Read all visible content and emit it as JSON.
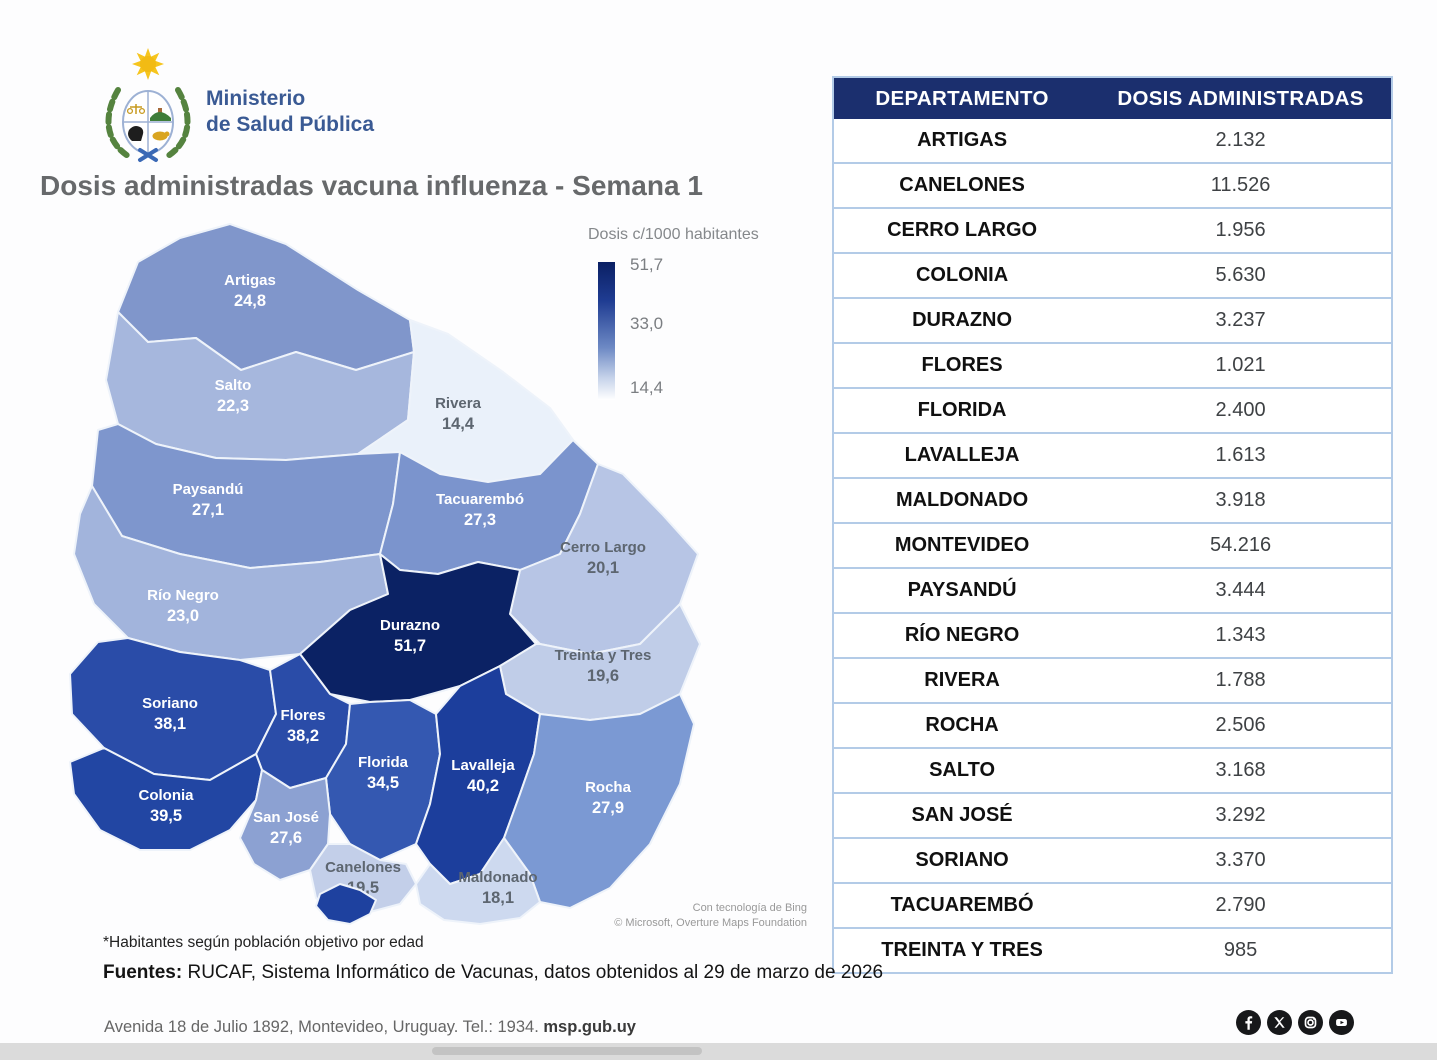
{
  "brand": {
    "line1": "Ministerio",
    "line2": "de Salud Pública"
  },
  "title": "Dosis administradas vacuna influenza - Semana 1",
  "legend": {
    "title": "Dosis c/1000 habitantes",
    "ticks": [
      "51,7",
      "33,0",
      "14,4"
    ]
  },
  "map_attribution": {
    "line1": "Con tecnología de Bing",
    "line2": "© Microsoft, Overture Maps Foundation"
  },
  "chart_data": [
    {
      "type": "heatmap",
      "subtype": "choropleth",
      "geography": "Uruguay departments",
      "title": "Dosis administradas vacuna influenza - Semana 1",
      "legend_title": "Dosis c/1000 habitantes",
      "colorbar_ticks": [
        "51,7",
        "33,0",
        "14,4"
      ],
      "value_range": [
        14.4,
        51.7
      ],
      "regions": [
        {
          "name": "Artigas",
          "value": "24,8",
          "fill": "#8096cb",
          "label_color": "#ffffff"
        },
        {
          "name": "Salto",
          "value": "22,3",
          "fill": "#a6b7dd",
          "label_color": "#ffffff"
        },
        {
          "name": "Rivera",
          "value": "14,4",
          "fill": "#eaf1fa",
          "label_color": "#5d6670"
        },
        {
          "name": "Paysandú",
          "value": "27,1",
          "fill": "#7e96cd",
          "label_color": "#ffffff"
        },
        {
          "name": "Tacuarembó",
          "value": "27,3",
          "fill": "#7b94cd",
          "label_color": "#ffffff"
        },
        {
          "name": "Cerro Largo",
          "value": "20,1",
          "fill": "#b7c5e5",
          "label_color": "#5d6670"
        },
        {
          "name": "Río Negro",
          "value": "23,0",
          "fill": "#a2b4dc",
          "label_color": "#ffffff"
        },
        {
          "name": "Durazno",
          "value": "51,7",
          "fill": "#0b2264",
          "label_color": "#ffffff"
        },
        {
          "name": "Treinta y Tres",
          "value": "19,6",
          "fill": "#c0cde8",
          "label_color": "#5d6670"
        },
        {
          "name": "Soriano",
          "value": "38,1",
          "fill": "#2a4ca8",
          "label_color": "#ffffff"
        },
        {
          "name": "Flores",
          "value": "38,2",
          "fill": "#2a4ca8",
          "label_color": "#ffffff"
        },
        {
          "name": "Florida",
          "value": "34,5",
          "fill": "#3458b1",
          "label_color": "#ffffff"
        },
        {
          "name": "Lavalleja",
          "value": "40,2",
          "fill": "#1c3e9c",
          "label_color": "#ffffff"
        },
        {
          "name": "Rocha",
          "value": "27,9",
          "fill": "#7b99d3",
          "label_color": "#ffffff"
        },
        {
          "name": "Colonia",
          "value": "39,5",
          "fill": "#2246a3",
          "label_color": "#ffffff"
        },
        {
          "name": "San José",
          "value": "27,6",
          "fill": "#8ca1d2",
          "label_color": "#ffffff"
        },
        {
          "name": "Canelones",
          "value": "19,5",
          "fill": "#c3cfe9",
          "label_color": "#5d6670"
        },
        {
          "name": "Maldonado",
          "value": "18,1",
          "fill": "#cdd9ef",
          "label_color": "#5d6670"
        },
        {
          "name": "Montevideo",
          "value": "",
          "fill": "#1e419f",
          "label_color": ""
        }
      ]
    },
    {
      "type": "table",
      "columns": [
        "DEPARTAMENTO",
        "DOSIS ADMINISTRADAS"
      ],
      "rows": [
        [
          "ARTIGAS",
          "2.132"
        ],
        [
          "CANELONES",
          "11.526"
        ],
        [
          "CERRO LARGO",
          "1.956"
        ],
        [
          "COLONIA",
          "5.630"
        ],
        [
          "DURAZNO",
          "3.237"
        ],
        [
          "FLORES",
          "1.021"
        ],
        [
          "FLORIDA",
          "2.400"
        ],
        [
          "LAVALLEJA",
          "1.613"
        ],
        [
          "MALDONADO",
          "3.918"
        ],
        [
          "MONTEVIDEO",
          "54.216"
        ],
        [
          "PAYSANDÚ",
          "3.444"
        ],
        [
          "RÍO NEGRO",
          "1.343"
        ],
        [
          "RIVERA",
          "1.788"
        ],
        [
          "ROCHA",
          "2.506"
        ],
        [
          "SALTO",
          "3.168"
        ],
        [
          "SAN JOSÉ",
          "3.292"
        ],
        [
          "SORIANO",
          "3.370"
        ],
        [
          "TACUAREMBÓ",
          "2.790"
        ],
        [
          "TREINTA Y TRES",
          "985"
        ]
      ]
    }
  ],
  "footnote": "*Habitantes según población objetivo por edad",
  "sources": {
    "label": "Fuentes:",
    "text": " RUCAF, Sistema Informático de Vacunas, datos obtenidos al 29 de marzo de 2026"
  },
  "footer": {
    "address": "Avenida 18 de Julio 1892, Montevideo, Uruguay. Tel.: 1934. ",
    "website": "msp.gub.uy",
    "social": [
      "facebook",
      "x",
      "instagram",
      "youtube"
    ]
  },
  "colors": {
    "table_header_bg": "#1b2f6e",
    "table_border": "#b3cbe7",
    "brand_blue": "#3a5a94",
    "title_gray": "#67696b",
    "scale_dark": "#0b2264",
    "scale_light": "#eaf1fa"
  }
}
